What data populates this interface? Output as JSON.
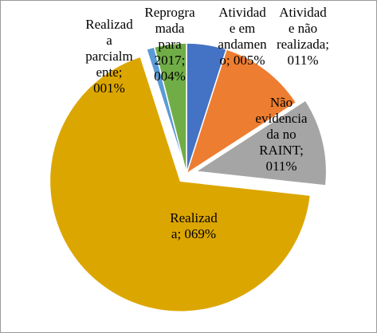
{
  "chart_data": {
    "type": "pie",
    "values": [
      5,
      11,
      11,
      69,
      1,
      4
    ],
    "value_labels": [
      [
        "Atividad",
        "e em",
        "andamen",
        "o; 005%"
      ],
      [
        "Atividad",
        "e não",
        "realizada;",
        "011%"
      ],
      [
        "Não",
        "evidencia",
        "da no",
        "RAINT;",
        "011%"
      ],
      [
        "Realizad",
        "a; 069%"
      ],
      [
        "Realizad",
        "a",
        "parcialm",
        "ente;",
        "001%"
      ],
      [
        "Reprogra",
        "mada",
        "para",
        "2017;",
        "004%"
      ]
    ],
    "colors": [
      "#4472c4",
      "#ed7d31",
      "#a5a5a5",
      "#dca600",
      "#5b9bd5",
      "#70ad47"
    ],
    "exploded": [
      false,
      false,
      true,
      true,
      false,
      false
    ]
  }
}
